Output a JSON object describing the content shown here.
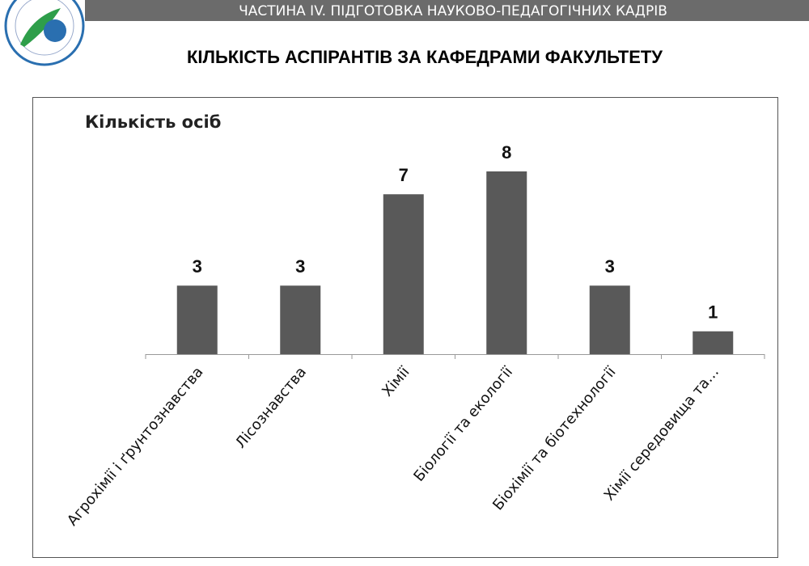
{
  "header": {
    "section": "ЧАСТИНА IV. ПІДГОТОВКА НАУКОВО-ПЕДАГОГІЧНИХ КАДРІВ"
  },
  "chart_data": {
    "type": "bar",
    "title": "КІЛЬКІСТЬ АСПІРАНТІВ ЗА КАФЕДРАМИ ФАКУЛЬТЕТУ",
    "y_label": "Кількість осіб",
    "categories": [
      "Агрохімії і ґрунтознавства",
      "Лісознавства",
      "Хімії",
      "Біології та екології",
      "Біохімії та біотехнології",
      "Хімії середовища та…"
    ],
    "values": [
      3,
      3,
      7,
      8,
      3,
      1
    ],
    "color": "#595959",
    "ylim": [
      0,
      8
    ]
  }
}
